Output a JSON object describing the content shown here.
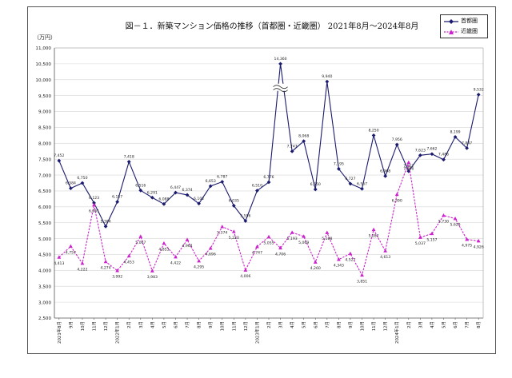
{
  "title": "図－１．新築マンション価格の推移（首都圏・近畿圏） 2021年8月～2024年8月",
  "unit_label": "（万円）",
  "colors": {
    "shuto": "#1a1a6e",
    "kinki": "#cc22cc"
  },
  "chart_data": {
    "type": "line",
    "title": "図－１．新築マンション価格の推移（首都圏・近畿圏） 2021年8月～2024年8月",
    "ylabel": "（万円）",
    "ylim": [
      2500,
      11000
    ],
    "yticks": [
      2500,
      3000,
      3500,
      4000,
      4500,
      5000,
      5500,
      6000,
      6500,
      7000,
      7500,
      8000,
      8500,
      9000,
      9500,
      10000,
      10500,
      11000
    ],
    "ytick_labels": [
      "2,500",
      "3,000",
      "3,500",
      "4,000",
      "4,500",
      "5,000",
      "5,500",
      "6,000",
      "6,500",
      "7,000",
      "7,500",
      "8,000",
      "8,500",
      "9,000",
      "9,500",
      "10,000",
      "10,500",
      "11,000"
    ],
    "grid": true,
    "legend": "top-right",
    "x_labels": [
      "2021年8月",
      "9月",
      "10月",
      "11月",
      "12月",
      "2022年1月",
      "2月",
      "3月",
      "4月",
      "5月",
      "6月",
      "7月",
      "8月",
      "9月",
      "10月",
      "11月",
      "12月",
      "2023年1月",
      "2月",
      "3月",
      "4月",
      "5月",
      "6月",
      "7月",
      "8月",
      "9月",
      "10月",
      "11月",
      "12月",
      "2024年1月",
      "2月",
      "3月",
      "4月",
      "5月",
      "6月",
      "7月",
      "8月"
    ],
    "series": [
      {
        "name": "首都圏",
        "color": "#1a1a6e",
        "marker": "diamond",
        "values": [
          7452,
          6584,
          6750,
          6123,
          5384,
          6157,
          7418,
          6516,
          6291,
          6088,
          6447,
          6374,
          6102,
          6653,
          6787,
          6035,
          5556,
          6510,
          6776,
          14360,
          7747,
          8068,
          6550,
          9940,
          7195,
          6727,
          6567,
          8250,
          6968,
          7956,
          7122,
          7623,
          7662,
          7486,
          8199,
          7847,
          9532
        ],
        "labels": [
          "7,452",
          "6,584",
          "6,750",
          "6,123",
          "5,384",
          "6,157",
          "7,418",
          "6,516",
          "6,291",
          "6,088",
          "6,447",
          "6,374",
          "6,102",
          "6,653",
          "6,787",
          "6,035",
          "5,556",
          "6,510",
          "6,776",
          "14,360",
          "7,747",
          "8,068",
          "6,550",
          "9,940",
          "7,195",
          "6,727",
          "6,567",
          "8,250",
          "6,968",
          "7,956",
          "7,122",
          "7,623",
          "7,662",
          "7,486",
          "8,199",
          "7,847",
          "9,532"
        ]
      },
      {
        "name": "近畿圏",
        "color": "#cc22cc",
        "marker": "triangle",
        "dashed": true,
        "values": [
          4413,
          4757,
          4222,
          6061,
          4274,
          3992,
          4453,
          5067,
          3983,
          4853,
          4422,
          4964,
          4295,
          4696,
          5374,
          5220,
          4006,
          4747,
          5055,
          4706,
          5193,
          5069,
          4260,
          5188,
          4343,
          4527,
          3851,
          5282,
          4613,
          6390,
          7396,
          5037,
          5157,
          5730,
          5629,
          4975,
          4926
        ],
        "labels": [
          "4,413",
          "4,757",
          "4,222",
          "6,061",
          "4,274",
          "3,992",
          "4,453",
          "5,067",
          "3,983",
          "4,853",
          "4,422",
          "4,964",
          "4,295",
          "4,696",
          "5,374",
          "5,220",
          "4,006",
          "4,747",
          "5,055",
          "4,706",
          "5,193",
          "5,069",
          "4,260",
          "5,188",
          "4,343",
          "4,527",
          "3,851",
          "5,282",
          "4,613",
          "6,390",
          "7,396",
          "5,037",
          "5,157",
          "5,730",
          "5,629",
          "4,975",
          "4,926"
        ]
      }
    ],
    "axis_break": {
      "series": "首都圏",
      "index": 19,
      "note": "off-scale value drawn with break marks"
    }
  }
}
